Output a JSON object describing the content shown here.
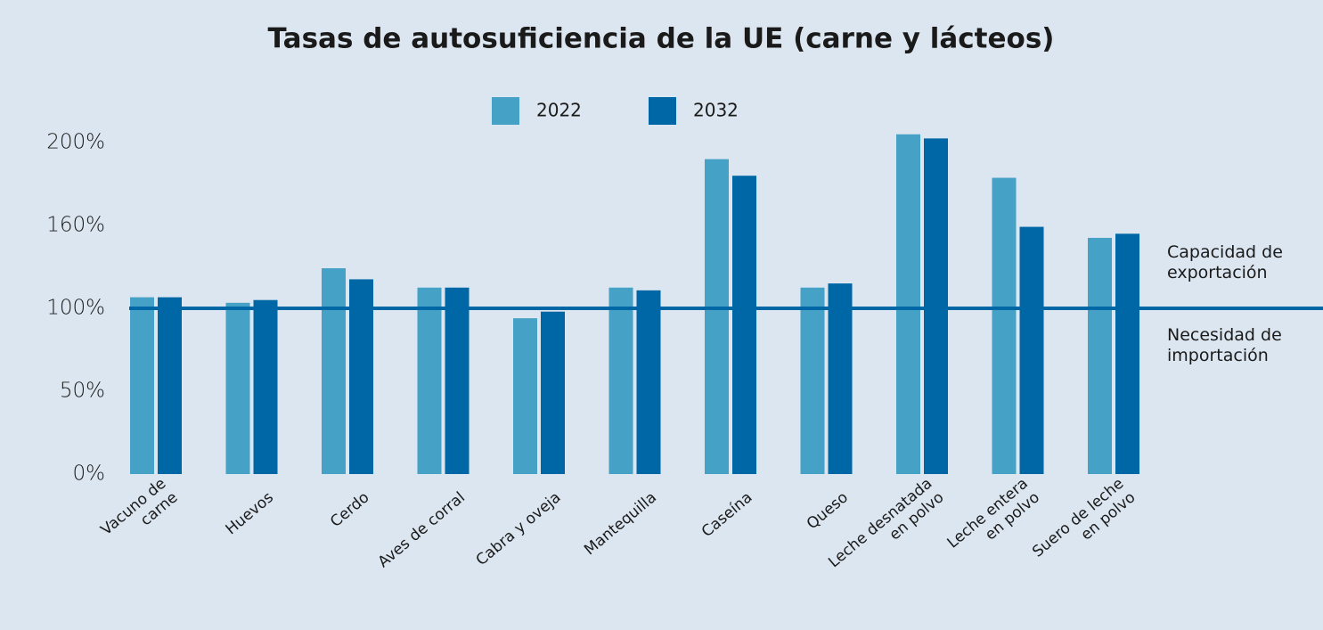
{
  "chart_data": {
    "type": "bar",
    "title": "Tasas de autosuficiencia de la UE (carne y lácteos)",
    "categories": [
      "Vacuno de\ncarne",
      "Huevos",
      "Cerdo",
      "Aves de corral",
      "Cabra y oveja",
      "Mantequilla",
      "Caseína",
      "Queso",
      "Leche desnatada\nen polvo",
      "Leche entera\nen polvo",
      "Suero de leche\nen polvo"
    ],
    "series": [
      {
        "name": "2022",
        "color": "#45a1c5",
        "values": [
          108,
          104,
          129,
          115,
          94,
          115,
          192,
          115,
          204,
          183,
          151
        ]
      },
      {
        "name": "2032",
        "color": "#0067a6",
        "values": [
          108,
          106,
          121,
          115,
          98,
          113,
          184,
          118,
          202,
          159,
          154
        ]
      }
    ],
    "ylim": [
      0,
      200
    ],
    "yticks": [
      {
        "value": 0,
        "label": "0%"
      },
      {
        "value": 50,
        "label": "50%"
      },
      {
        "value": 100,
        "label": "100%"
      },
      {
        "value": 160,
        "label": "160%"
      },
      {
        "value": 200,
        "label": "200%"
      }
    ],
    "reference_line": {
      "value": 100,
      "color": "#0067a6",
      "label_above": "Capacidad de\nexportación",
      "label_below": "Necesidad de\nimportación"
    },
    "legend": "top"
  }
}
